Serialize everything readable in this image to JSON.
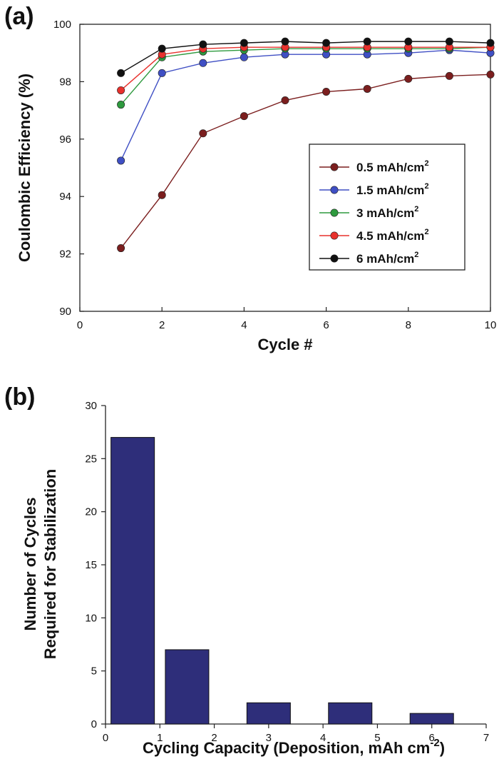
{
  "chart_data": [
    {
      "panel": "(a)",
      "type": "line",
      "xlabel": "Cycle #",
      "ylabel": "Coulombic Efficiency (%)",
      "xlim": [
        0,
        10
      ],
      "ylim": [
        90,
        100
      ],
      "xticks": [
        0,
        2,
        4,
        6,
        8,
        10
      ],
      "yticks": [
        90,
        92,
        94,
        96,
        98,
        100
      ],
      "x": [
        1,
        2,
        3,
        4,
        5,
        6,
        7,
        8,
        9,
        10
      ],
      "grid": false,
      "legend_position": "center-right",
      "series": [
        {
          "name": "0.5 mAh/cm",
          "sup": "2",
          "color": "#7b1e1e",
          "values": [
            92.2,
            94.05,
            96.2,
            96.8,
            97.35,
            97.65,
            97.75,
            98.1,
            98.2,
            98.25
          ]
        },
        {
          "name": "1.5 mAh/cm",
          "sup": "2",
          "color": "#3f4fc4",
          "values": [
            95.25,
            98.3,
            98.65,
            98.85,
            98.95,
            98.95,
            98.95,
            99.0,
            99.1,
            99.0
          ]
        },
        {
          "name": "3 mAh/cm",
          "sup": "2",
          "color": "#2e9a3e",
          "values": [
            97.2,
            98.85,
            99.05,
            99.1,
            99.15,
            99.15,
            99.15,
            99.15,
            99.15,
            99.2
          ]
        },
        {
          "name": "4.5 mAh/cm",
          "sup": "2",
          "color": "#e8312c",
          "values": [
            97.7,
            98.95,
            99.15,
            99.2,
            99.2,
            99.2,
            99.2,
            99.2,
            99.2,
            99.2
          ]
        },
        {
          "name": "6 mAh/cm",
          "sup": "2",
          "color": "#111111",
          "values": [
            98.3,
            99.15,
            99.3,
            99.35,
            99.4,
            99.35,
            99.4,
            99.4,
            99.4,
            99.35
          ]
        }
      ]
    },
    {
      "panel": "(b)",
      "type": "bar",
      "xlabel": "Cycling Capacity (Deposition, mAh cm",
      "xlabel_sup": "-2",
      "xlabel_close": ")",
      "ylabel_line1": "Number of Cycles",
      "ylabel_line2": "Required for Stabilization",
      "xlim": [
        0,
        7
      ],
      "ylim": [
        0,
        30
      ],
      "xticks": [
        0,
        1,
        2,
        3,
        4,
        5,
        6,
        7
      ],
      "yticks": [
        0,
        5,
        10,
        15,
        20,
        25,
        30
      ],
      "bar_color": "#2e2e7a",
      "bar_width": 0.8,
      "categories": [
        0.5,
        1.5,
        3,
        4.5,
        6
      ],
      "values": [
        27,
        7,
        2,
        2,
        1
      ]
    }
  ]
}
